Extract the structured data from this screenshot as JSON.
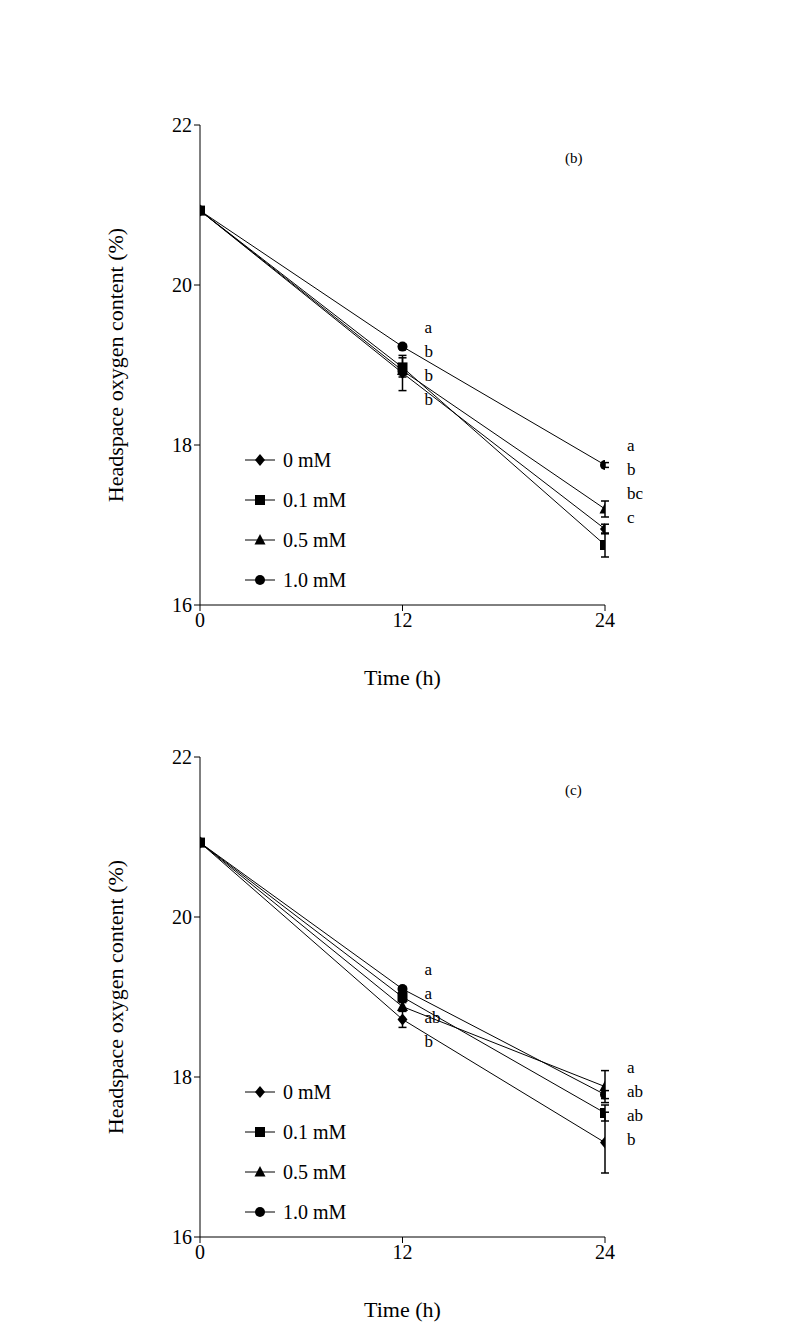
{
  "chart_data": [
    {
      "type": "line",
      "title": "(b)",
      "x_label": "Time (h)",
      "y_label": "Headspace oxygen content (%)",
      "x": [
        0,
        12,
        24
      ],
      "xlim": [
        0,
        24
      ],
      "xticks": [
        0,
        12,
        24
      ],
      "ylim": [
        16,
        22
      ],
      "yticks": [
        16,
        18,
        20,
        22
      ],
      "legend": "lower left",
      "series": [
        {
          "name": "0 mM",
          "color": "#000000",
          "marker": "diamond",
          "values": [
            20.93,
            18.9,
            16.95
          ],
          "errors": [
            0,
            0.22,
            0.06
          ],
          "letters": [
            null,
            "b",
            "bc"
          ]
        },
        {
          "name": "0.1 mM",
          "color": "#000000",
          "marker": "square",
          "values": [
            20.93,
            18.97,
            16.75
          ],
          "errors": [
            0,
            0.12,
            0.15
          ],
          "letters": [
            null,
            "b",
            "c"
          ]
        },
        {
          "name": "0.5 mM",
          "color": "#000000",
          "marker": "triangle",
          "values": [
            20.93,
            18.93,
            17.2
          ],
          "errors": [
            0,
            0.05,
            0.1
          ],
          "letters": [
            null,
            "b",
            "b"
          ]
        },
        {
          "name": "1.0 mM",
          "color": "#000000",
          "marker": "circle",
          "values": [
            20.93,
            19.23,
            17.75
          ],
          "errors": [
            0,
            0.03,
            0.03
          ],
          "letters": [
            null,
            "a",
            "a"
          ]
        }
      ]
    },
    {
      "type": "line",
      "title": "(c)",
      "x_label": "Time (h)",
      "y_label": "Headspace oxygen content (%)",
      "x": [
        0,
        12,
        24
      ],
      "xlim": [
        0,
        24
      ],
      "xticks": [
        0,
        12,
        24
      ],
      "ylim": [
        16,
        22
      ],
      "yticks": [
        16,
        18,
        20,
        22
      ],
      "legend": "lower left",
      "series": [
        {
          "name": "0 mM",
          "color": "#000000",
          "marker": "diamond",
          "values": [
            20.93,
            18.72,
            17.18
          ],
          "errors": [
            0,
            0.1,
            0.38
          ],
          "letters": [
            null,
            "b",
            "b"
          ]
        },
        {
          "name": "0.1 mM",
          "color": "#000000",
          "marker": "square",
          "values": [
            20.93,
            19.0,
            17.55
          ],
          "errors": [
            0,
            0.05,
            0.1
          ],
          "letters": [
            null,
            "a",
            "ab"
          ]
        },
        {
          "name": "0.5 mM",
          "color": "#000000",
          "marker": "triangle",
          "values": [
            20.93,
            18.88,
            17.88
          ],
          "errors": [
            0,
            0.05,
            0.2
          ],
          "letters": [
            null,
            "ab",
            "a"
          ]
        },
        {
          "name": "1.0 mM",
          "color": "#000000",
          "marker": "circle",
          "values": [
            20.93,
            19.1,
            17.78
          ],
          "errors": [
            0,
            0.03,
            0.05
          ],
          "letters": [
            null,
            "a",
            "ab"
          ]
        }
      ]
    }
  ]
}
